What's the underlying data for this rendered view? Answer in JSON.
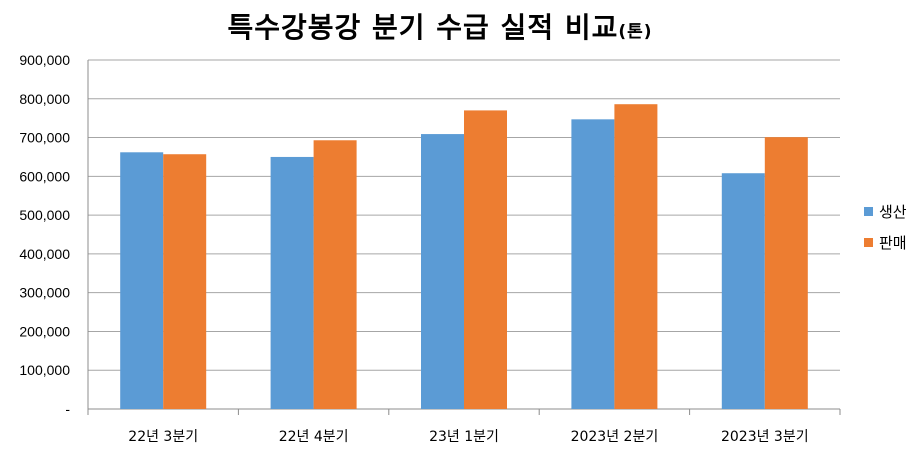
{
  "title": "특수강봉강 분기 수급 실적 비교",
  "title_unit": "(톤)",
  "chart_data": {
    "type": "bar",
    "title": "특수강봉강 분기 수급 실적 비교(톤)",
    "categories": [
      "22년 3분기",
      "22년 4분기",
      "23년 1분기",
      "2023년 2분기",
      "2023년 3분기"
    ],
    "series": [
      {
        "name": "생산",
        "color": "#5B9BD5",
        "values": [
          662000,
          650000,
          709000,
          747000,
          608000
        ]
      },
      {
        "name": "판매",
        "color": "#ED7D31",
        "values": [
          657000,
          693000,
          770000,
          786000,
          701000
        ]
      }
    ],
    "ylim": [
      0,
      900000
    ],
    "yticks": [
      0,
      100000,
      200000,
      300000,
      400000,
      500000,
      600000,
      700000,
      800000,
      900000
    ],
    "ytick_labels": [
      "-",
      "100,000",
      "200,000",
      "300,000",
      "400,000",
      "500,000",
      "600,000",
      "700,000",
      "800,000",
      "900,000"
    ],
    "grid": true,
    "legend_position": "right"
  }
}
